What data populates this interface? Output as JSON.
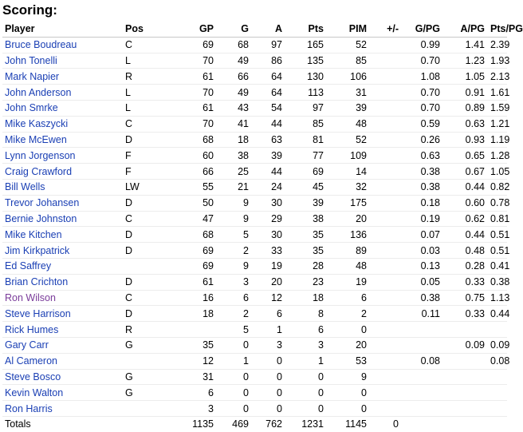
{
  "title": "Scoring:",
  "columns": [
    "Player",
    "Pos",
    "GP",
    "G",
    "A",
    "Pts",
    "PIM",
    "+/-",
    "G/PG",
    "A/PG",
    "Pts/PG"
  ],
  "rows": [
    {
      "player": "Bruce Boudreau",
      "pos": "C",
      "gp": "69",
      "g": "68",
      "a": "97",
      "pts": "165",
      "pim": "52",
      "pm": "",
      "gpg": "0.99",
      "apg": "1.41",
      "ptspg": "2.39",
      "visited": false
    },
    {
      "player": "John Tonelli",
      "pos": "L",
      "gp": "70",
      "g": "49",
      "a": "86",
      "pts": "135",
      "pim": "85",
      "pm": "",
      "gpg": "0.70",
      "apg": "1.23",
      "ptspg": "1.93",
      "visited": false
    },
    {
      "player": "Mark Napier",
      "pos": "R",
      "gp": "61",
      "g": "66",
      "a": "64",
      "pts": "130",
      "pim": "106",
      "pm": "",
      "gpg": "1.08",
      "apg": "1.05",
      "ptspg": "2.13",
      "visited": false
    },
    {
      "player": "John Anderson",
      "pos": "L",
      "gp": "70",
      "g": "49",
      "a": "64",
      "pts": "113",
      "pim": "31",
      "pm": "",
      "gpg": "0.70",
      "apg": "0.91",
      "ptspg": "1.61",
      "visited": false
    },
    {
      "player": "John Smrke",
      "pos": "L",
      "gp": "61",
      "g": "43",
      "a": "54",
      "pts": "97",
      "pim": "39",
      "pm": "",
      "gpg": "0.70",
      "apg": "0.89",
      "ptspg": "1.59",
      "visited": false
    },
    {
      "player": "Mike Kaszycki",
      "pos": "C",
      "gp": "70",
      "g": "41",
      "a": "44",
      "pts": "85",
      "pim": "48",
      "pm": "",
      "gpg": "0.59",
      "apg": "0.63",
      "ptspg": "1.21",
      "visited": false
    },
    {
      "player": "Mike McEwen",
      "pos": "D",
      "gp": "68",
      "g": "18",
      "a": "63",
      "pts": "81",
      "pim": "52",
      "pm": "",
      "gpg": "0.26",
      "apg": "0.93",
      "ptspg": "1.19",
      "visited": false
    },
    {
      "player": "Lynn Jorgenson",
      "pos": "F",
      "gp": "60",
      "g": "38",
      "a": "39",
      "pts": "77",
      "pim": "109",
      "pm": "",
      "gpg": "0.63",
      "apg": "0.65",
      "ptspg": "1.28",
      "visited": false
    },
    {
      "player": "Craig Crawford",
      "pos": "F",
      "gp": "66",
      "g": "25",
      "a": "44",
      "pts": "69",
      "pim": "14",
      "pm": "",
      "gpg": "0.38",
      "apg": "0.67",
      "ptspg": "1.05",
      "visited": false
    },
    {
      "player": "Bill Wells",
      "pos": "LW",
      "gp": "55",
      "g": "21",
      "a": "24",
      "pts": "45",
      "pim": "32",
      "pm": "",
      "gpg": "0.38",
      "apg": "0.44",
      "ptspg": "0.82",
      "visited": false
    },
    {
      "player": "Trevor Johansen",
      "pos": "D",
      "gp": "50",
      "g": "9",
      "a": "30",
      "pts": "39",
      "pim": "175",
      "pm": "",
      "gpg": "0.18",
      "apg": "0.60",
      "ptspg": "0.78",
      "visited": false
    },
    {
      "player": "Bernie Johnston",
      "pos": "C",
      "gp": "47",
      "g": "9",
      "a": "29",
      "pts": "38",
      "pim": "20",
      "pm": "",
      "gpg": "0.19",
      "apg": "0.62",
      "ptspg": "0.81",
      "visited": false
    },
    {
      "player": "Mike Kitchen",
      "pos": "D",
      "gp": "68",
      "g": "5",
      "a": "30",
      "pts": "35",
      "pim": "136",
      "pm": "",
      "gpg": "0.07",
      "apg": "0.44",
      "ptspg": "0.51",
      "visited": false
    },
    {
      "player": "Jim Kirkpatrick",
      "pos": "D",
      "gp": "69",
      "g": "2",
      "a": "33",
      "pts": "35",
      "pim": "89",
      "pm": "",
      "gpg": "0.03",
      "apg": "0.48",
      "ptspg": "0.51",
      "visited": false
    },
    {
      "player": "Ed Saffrey",
      "pos": "",
      "gp": "69",
      "g": "9",
      "a": "19",
      "pts": "28",
      "pim": "48",
      "pm": "",
      "gpg": "0.13",
      "apg": "0.28",
      "ptspg": "0.41",
      "visited": false
    },
    {
      "player": "Brian Crichton",
      "pos": "D",
      "gp": "61",
      "g": "3",
      "a": "20",
      "pts": "23",
      "pim": "19",
      "pm": "",
      "gpg": "0.05",
      "apg": "0.33",
      "ptspg": "0.38",
      "visited": false
    },
    {
      "player": "Ron Wilson",
      "pos": "C",
      "gp": "16",
      "g": "6",
      "a": "12",
      "pts": "18",
      "pim": "6",
      "pm": "",
      "gpg": "0.38",
      "apg": "0.75",
      "ptspg": "1.13",
      "visited": true
    },
    {
      "player": "Steve Harrison",
      "pos": "D",
      "gp": "18",
      "g": "2",
      "a": "6",
      "pts": "8",
      "pim": "2",
      "pm": "",
      "gpg": "0.11",
      "apg": "0.33",
      "ptspg": "0.44",
      "visited": false
    },
    {
      "player": "Rick Humes",
      "pos": "R",
      "gp": "",
      "g": "5",
      "a": "1",
      "pts": "6",
      "pim": "0",
      "pm": "",
      "gpg": "",
      "apg": "",
      "ptspg": "",
      "visited": false
    },
    {
      "player": "Gary Carr",
      "pos": "G",
      "gp": "35",
      "g": "0",
      "a": "3",
      "pts": "3",
      "pim": "20",
      "pm": "",
      "gpg": "",
      "apg": "0.09",
      "ptspg": "0.09",
      "visited": false
    },
    {
      "player": "Al Cameron",
      "pos": "",
      "gp": "12",
      "g": "1",
      "a": "0",
      "pts": "1",
      "pim": "53",
      "pm": "",
      "gpg": "0.08",
      "apg": "",
      "ptspg": "0.08",
      "visited": false
    },
    {
      "player": "Steve Bosco",
      "pos": "G",
      "gp": "31",
      "g": "0",
      "a": "0",
      "pts": "0",
      "pim": "9",
      "pm": "",
      "gpg": "",
      "apg": "",
      "ptspg": "",
      "visited": false
    },
    {
      "player": "Kevin Walton",
      "pos": "G",
      "gp": "6",
      "g": "0",
      "a": "0",
      "pts": "0",
      "pim": "0",
      "pm": "",
      "gpg": "",
      "apg": "",
      "ptspg": "",
      "visited": false
    },
    {
      "player": "Ron Harris",
      "pos": "",
      "gp": "3",
      "g": "0",
      "a": "0",
      "pts": "0",
      "pim": "0",
      "pm": "",
      "gpg": "",
      "apg": "",
      "ptspg": "",
      "visited": false
    }
  ],
  "totals": {
    "label": "Totals",
    "pos": "",
    "gp": "1135",
    "g": "469",
    "a": "762",
    "pts": "1231",
    "pim": "1145",
    "pm": "0",
    "gpg": "",
    "apg": "",
    "ptspg": ""
  },
  "colors": {
    "link": "#1a3fb4",
    "visited_link": "#7a3b9a",
    "rule": "#c8c8c8"
  }
}
